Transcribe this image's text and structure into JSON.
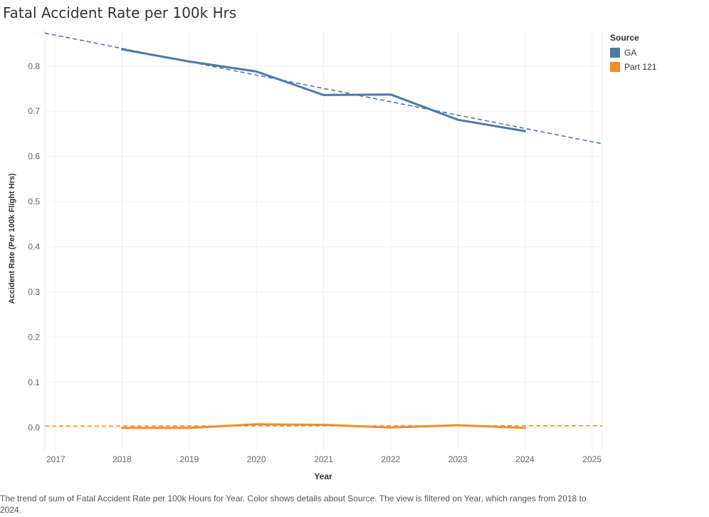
{
  "chart_data": {
    "type": "line",
    "title": "Fatal Accident Rate per 100k Hrs",
    "xlabel": "Year",
    "ylabel": "Accident Rate (Per 100k Flight Hrs)",
    "x_ticks": [
      "2017",
      "2018",
      "2019",
      "2020",
      "2021",
      "2022",
      "2023",
      "2024",
      "2025"
    ],
    "y_ticks": [
      "0.0",
      "0.1",
      "0.2",
      "0.3",
      "0.4",
      "0.5",
      "0.6",
      "0.7",
      "0.8"
    ],
    "xlim": [
      2016.85,
      2025.15
    ],
    "ylim": [
      -0.05,
      0.88
    ],
    "grid": true,
    "legend_title": "Source",
    "legend_position": "right",
    "x": [
      2018,
      2019,
      2020,
      2021,
      2022,
      2023,
      2024
    ],
    "series": [
      {
        "name": "GA",
        "color": "#4e79a7",
        "values": [
          0.837,
          0.81,
          0.788,
          0.736,
          0.737,
          0.681,
          0.656
        ],
        "trend": {
          "style": "dashed",
          "endpoints": [
            [
              2016.85,
              0.873
            ],
            [
              2025.15,
              0.628
            ]
          ]
        }
      },
      {
        "name": "Part 121",
        "color": "#f28e2b",
        "values": [
          -0.001,
          -0.001,
          0.007,
          0.006,
          0.0,
          0.005,
          -0.001
        ],
        "trend": {
          "style": "dashed",
          "endpoints": [
            [
              2016.85,
              0.003
            ],
            [
              2025.15,
              0.004
            ]
          ]
        }
      }
    ]
  },
  "caption": "The trend of sum of Fatal Accident Rate per 100k Hours for Year.  Color shows details about Source. The view is filtered on Year, which ranges from 2018 to 2024."
}
